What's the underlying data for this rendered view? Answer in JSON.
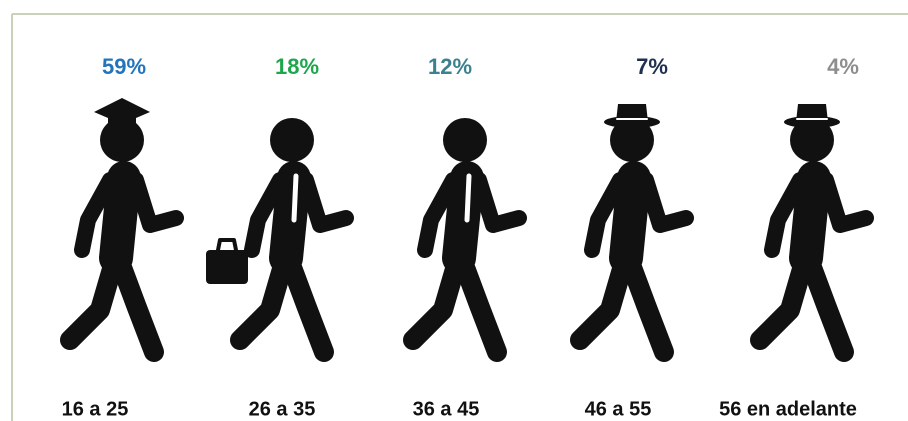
{
  "chart_data": {
    "type": "pictograph",
    "categories": [
      "16 a 25",
      "26 a 35",
      "36 a 45",
      "46 a 55",
      "56 en adelante"
    ],
    "values": [
      59,
      18,
      12,
      7,
      4
    ],
    "value_labels": [
      "59%",
      "18%",
      "12%",
      "7%",
      "4%"
    ],
    "colors": [
      "#2474bb",
      "#1ea64c",
      "#3c8190",
      "#1e2f4f",
      "#8e8e8e"
    ]
  }
}
